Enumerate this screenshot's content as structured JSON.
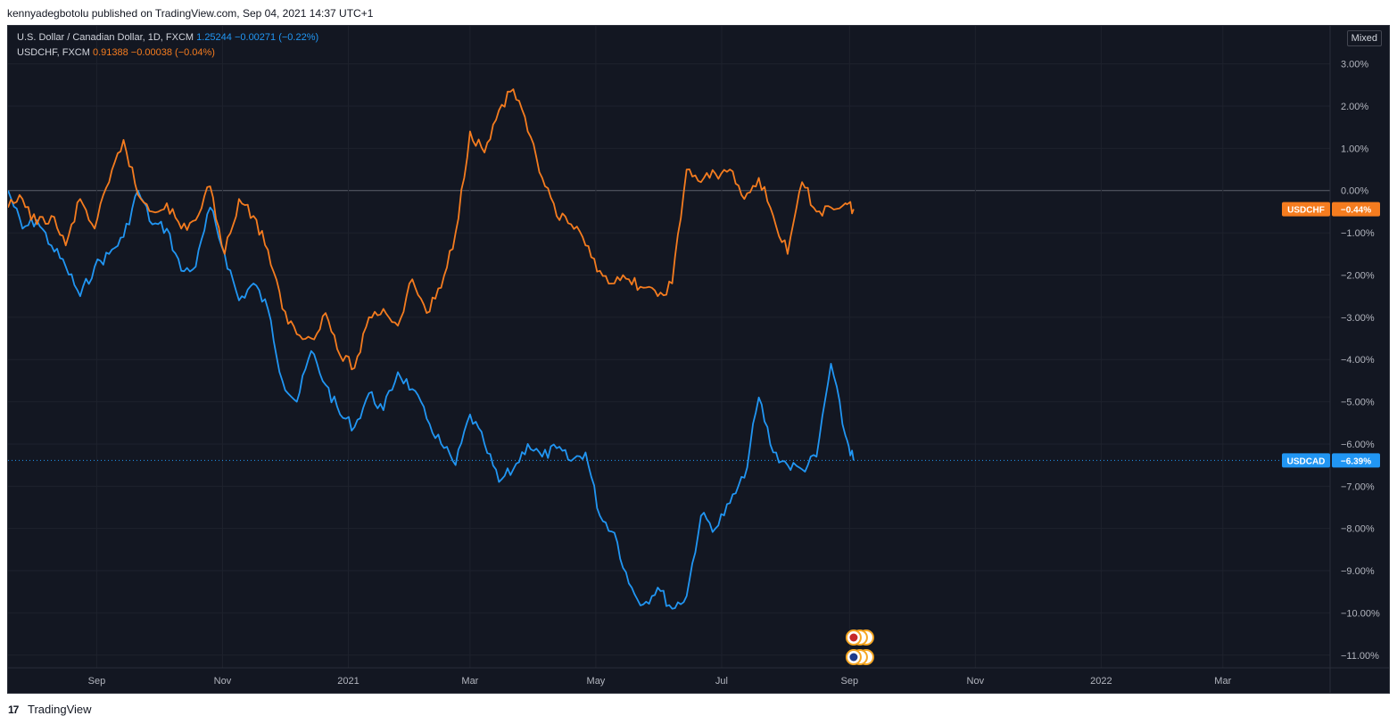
{
  "header": {
    "published_text": "kennyadegbotolu published on TradingView.com, Sep 04, 2021 14:37 UTC+1"
  },
  "legend": [
    {
      "name": "U.S. Dollar / Canadian Dollar, 1D, FXCM",
      "value": "1.25244",
      "change": "−0.00271",
      "change_pct": "(−0.22%)",
      "color": "#2196f3"
    },
    {
      "name": "USDCHF, FXCM",
      "value": "0.91388",
      "change": "−0.00038",
      "change_pct": "(−0.04%)",
      "color": "#f57c1f"
    }
  ],
  "scale_mode": "Mixed",
  "footer": {
    "logo": "17",
    "brand": "TradingView"
  },
  "colors": {
    "background": "#131722",
    "grid": "#1e222d",
    "axis_text": "#b2b5be",
    "usdcad": "#2196f3",
    "usdchf": "#f57c1f"
  },
  "chart_data": {
    "type": "line",
    "title": "U.S. Dollar / Canadian Dollar, 1D, FXCM",
    "y_unit": "percent",
    "ylim": [
      -11.3,
      3.9
    ],
    "y_ticks": [
      "3.00%",
      "2.00%",
      "1.00%",
      "0.00%",
      "−1.00%",
      "−2.00%",
      "−3.00%",
      "−4.00%",
      "−5.00%",
      "−6.00%",
      "−7.00%",
      "−8.00%",
      "−9.00%",
      "−10.00%",
      "−11.00%"
    ],
    "y_tick_values": [
      3,
      2,
      1,
      0,
      -1,
      -2,
      -3,
      -4,
      -5,
      -6,
      -7,
      -8,
      -9,
      -10,
      -11
    ],
    "xlim": [
      "2020-07-20",
      "2022-04-22"
    ],
    "x_ticks": [
      {
        "label": "Sep",
        "date": "2020-09-01"
      },
      {
        "label": "Nov",
        "date": "2020-11-01"
      },
      {
        "label": "2021",
        "date": "2021-01-01"
      },
      {
        "label": "Mar",
        "date": "2021-03-01"
      },
      {
        "label": "May",
        "date": "2021-05-01"
      },
      {
        "label": "Jul",
        "date": "2021-07-01"
      },
      {
        "label": "Sep",
        "date": "2021-09-01"
      },
      {
        "label": "Nov",
        "date": "2021-11-01"
      },
      {
        "label": "2022",
        "date": "2022-01-01"
      },
      {
        "label": "Mar",
        "date": "2022-03-01"
      }
    ],
    "grid": true,
    "series": [
      {
        "name": "USDCAD",
        "last_label": "−6.39%",
        "color": "#2196f3",
        "points": [
          [
            "2020-07-20",
            0.0
          ],
          [
            "2020-07-27",
            -0.9
          ],
          [
            "2020-08-03",
            -0.7
          ],
          [
            "2020-08-10",
            -1.3
          ],
          [
            "2020-08-17",
            -1.8
          ],
          [
            "2020-08-24",
            -2.5
          ],
          [
            "2020-08-31",
            -1.8
          ],
          [
            "2020-09-07",
            -1.5
          ],
          [
            "2020-09-14",
            -1.1
          ],
          [
            "2020-09-21",
            0.0
          ],
          [
            "2020-09-28",
            -0.8
          ],
          [
            "2020-10-05",
            -0.9
          ],
          [
            "2020-10-12",
            -1.9
          ],
          [
            "2020-10-19",
            -1.8
          ],
          [
            "2020-10-26",
            -0.4
          ],
          [
            "2020-11-02",
            -1.5
          ],
          [
            "2020-11-09",
            -2.6
          ],
          [
            "2020-11-16",
            -2.2
          ],
          [
            "2020-11-23",
            -2.8
          ],
          [
            "2020-11-30",
            -4.5
          ],
          [
            "2020-12-07",
            -5.0
          ],
          [
            "2020-12-14",
            -3.8
          ],
          [
            "2020-12-21",
            -4.6
          ],
          [
            "2020-12-28",
            -5.3
          ],
          [
            "2021-01-04",
            -5.6
          ],
          [
            "2021-01-11",
            -4.8
          ],
          [
            "2021-01-18",
            -5.2
          ],
          [
            "2021-01-25",
            -4.3
          ],
          [
            "2021-02-01",
            -4.7
          ],
          [
            "2021-02-08",
            -5.4
          ],
          [
            "2021-02-15",
            -6.0
          ],
          [
            "2021-02-22",
            -6.5
          ],
          [
            "2021-03-01",
            -5.3
          ],
          [
            "2021-03-08",
            -6.0
          ],
          [
            "2021-03-15",
            -6.9
          ],
          [
            "2021-03-22",
            -6.6
          ],
          [
            "2021-03-29",
            -6.0
          ],
          [
            "2021-04-05",
            -6.3
          ],
          [
            "2021-04-12",
            -6.1
          ],
          [
            "2021-04-19",
            -6.4
          ],
          [
            "2021-04-26",
            -6.2
          ],
          [
            "2021-05-03",
            -7.7
          ],
          [
            "2021-05-10",
            -8.1
          ],
          [
            "2021-05-17",
            -9.3
          ],
          [
            "2021-05-24",
            -9.8
          ],
          [
            "2021-05-31",
            -9.4
          ],
          [
            "2021-06-07",
            -9.9
          ],
          [
            "2021-06-14",
            -9.6
          ],
          [
            "2021-06-21",
            -7.7
          ],
          [
            "2021-06-28",
            -8.0
          ],
          [
            "2021-07-05",
            -7.4
          ],
          [
            "2021-07-12",
            -6.8
          ],
          [
            "2021-07-19",
            -4.9
          ],
          [
            "2021-07-26",
            -6.2
          ],
          [
            "2021-08-02",
            -6.5
          ],
          [
            "2021-08-09",
            -6.6
          ],
          [
            "2021-08-16",
            -6.3
          ],
          [
            "2021-08-23",
            -4.1
          ],
          [
            "2021-08-30",
            -5.8
          ],
          [
            "2021-09-03",
            -6.39
          ]
        ]
      },
      {
        "name": "USDCHF",
        "last_label": "−0.44%",
        "color": "#f57c1f",
        "points": [
          [
            "2020-07-20",
            -0.4
          ],
          [
            "2020-07-27",
            -0.2
          ],
          [
            "2020-08-03",
            -0.8
          ],
          [
            "2020-08-10",
            -0.6
          ],
          [
            "2020-08-17",
            -1.3
          ],
          [
            "2020-08-24",
            -0.2
          ],
          [
            "2020-08-31",
            -0.9
          ],
          [
            "2020-09-07",
            0.2
          ],
          [
            "2020-09-14",
            1.2
          ],
          [
            "2020-09-21",
            -0.1
          ],
          [
            "2020-09-28",
            -0.5
          ],
          [
            "2020-10-05",
            -0.3
          ],
          [
            "2020-10-12",
            -0.9
          ],
          [
            "2020-10-19",
            -0.7
          ],
          [
            "2020-10-26",
            0.1
          ],
          [
            "2020-11-02",
            -1.5
          ],
          [
            "2020-11-09",
            -0.2
          ],
          [
            "2020-11-16",
            -0.6
          ],
          [
            "2020-11-23",
            -1.4
          ],
          [
            "2020-11-30",
            -2.8
          ],
          [
            "2020-12-07",
            -3.4
          ],
          [
            "2020-12-14",
            -3.5
          ],
          [
            "2020-12-21",
            -2.9
          ],
          [
            "2020-12-28",
            -3.9
          ],
          [
            "2021-01-04",
            -4.2
          ],
          [
            "2021-01-11",
            -3.0
          ],
          [
            "2021-01-18",
            -2.8
          ],
          [
            "2021-01-25",
            -3.2
          ],
          [
            "2021-02-01",
            -2.1
          ],
          [
            "2021-02-08",
            -2.9
          ],
          [
            "2021-02-15",
            -2.3
          ],
          [
            "2021-02-22",
            -1.0
          ],
          [
            "2021-03-01",
            1.4
          ],
          [
            "2021-03-08",
            0.9
          ],
          [
            "2021-03-15",
            1.9
          ],
          [
            "2021-03-22",
            2.4
          ],
          [
            "2021-03-29",
            1.4
          ],
          [
            "2021-04-05",
            0.3
          ],
          [
            "2021-04-12",
            -0.6
          ],
          [
            "2021-04-19",
            -0.8
          ],
          [
            "2021-04-26",
            -1.3
          ],
          [
            "2021-05-03",
            -1.9
          ],
          [
            "2021-05-10",
            -2.2
          ],
          [
            "2021-05-17",
            -2.1
          ],
          [
            "2021-05-24",
            -2.3
          ],
          [
            "2021-05-31",
            -2.5
          ],
          [
            "2021-06-07",
            -2.2
          ],
          [
            "2021-06-14",
            0.5
          ],
          [
            "2021-06-21",
            0.2
          ],
          [
            "2021-06-28",
            0.4
          ],
          [
            "2021-07-05",
            0.5
          ],
          [
            "2021-07-12",
            -0.2
          ],
          [
            "2021-07-19",
            0.3
          ],
          [
            "2021-07-26",
            -0.6
          ],
          [
            "2021-08-02",
            -1.5
          ],
          [
            "2021-08-09",
            0.2
          ],
          [
            "2021-08-16",
            -0.5
          ],
          [
            "2021-08-23",
            -0.4
          ],
          [
            "2021-08-30",
            -0.3
          ],
          [
            "2021-09-03",
            -0.44
          ]
        ]
      }
    ]
  }
}
